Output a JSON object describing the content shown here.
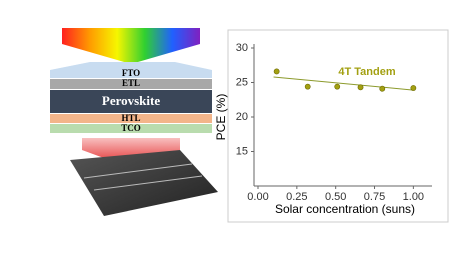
{
  "chart_data": {
    "type": "scatter",
    "xlabel": "Solar concentration (suns)",
    "ylabel": "PCE (%)",
    "annotation": "4T Tandem",
    "series": [
      {
        "name": "4T Tandem",
        "color": "#a3a012",
        "x": [
          0.12,
          0.32,
          0.51,
          0.66,
          0.8,
          1.0
        ],
        "values": [
          26.6,
          24.4,
          24.4,
          24.3,
          24.1,
          24.2
        ]
      }
    ],
    "trend": {
      "color": "#8c9a2c",
      "x": [
        0.1,
        1.0
      ],
      "values": [
        25.8,
        23.9
      ]
    },
    "xlim": [
      0,
      1.12
    ],
    "ylim": [
      10,
      30
    ],
    "xticks": [
      {
        "value": 0,
        "label": "0.00"
      },
      {
        "value": 0.25,
        "label": "0.25"
      },
      {
        "value": 0.5,
        "label": "0.50"
      },
      {
        "value": 0.75,
        "label": "0.75"
      },
      {
        "value": 1,
        "label": "1.00"
      }
    ],
    "yticks": [
      15,
      20,
      25,
      30
    ]
  },
  "diagram": {
    "layers": [
      "FTO",
      "ETL",
      "Perovskite",
      "HTL",
      "TCO"
    ]
  }
}
